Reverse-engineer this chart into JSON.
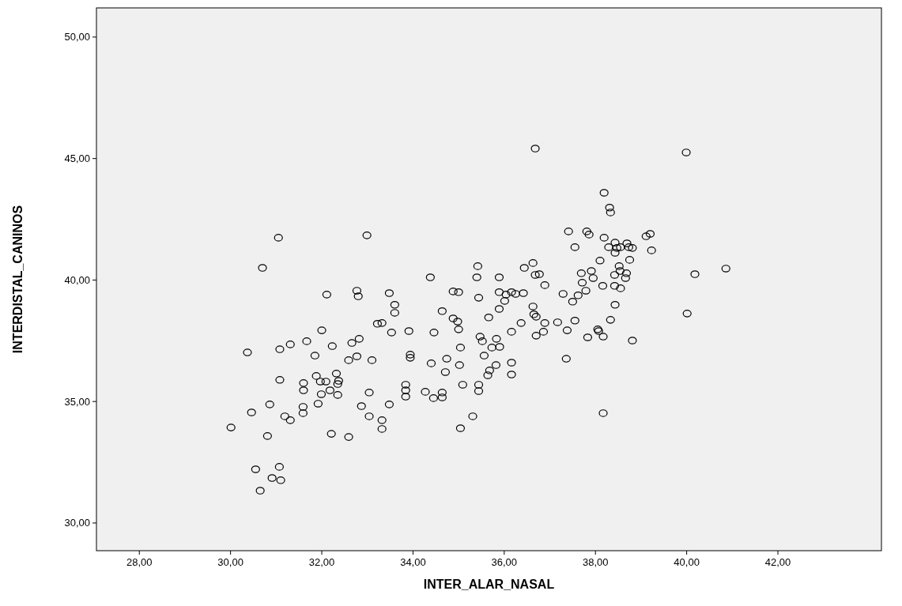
{
  "chart_data": {
    "type": "scatter",
    "xlabel": "INTER_ALAR_NASAL",
    "ylabel": "INTERDISTAL_CANINOS",
    "marker": "circle",
    "grid": false,
    "xlim": [
      27.06,
      44.27
    ],
    "ylim": [
      28.86,
      51.2
    ],
    "xticks": [
      {
        "value": 28,
        "label": "28,00"
      },
      {
        "value": 30,
        "label": "30,00"
      },
      {
        "value": 32,
        "label": "32,00"
      },
      {
        "value": 34,
        "label": "34,00"
      },
      {
        "value": 36,
        "label": "36,00"
      },
      {
        "value": 38,
        "label": "38,00"
      },
      {
        "value": 40,
        "label": "40,00"
      },
      {
        "value": 42,
        "label": "42,00"
      }
    ],
    "yticks": [
      {
        "value": 30,
        "label": "30,00"
      },
      {
        "value": 35,
        "label": "35,00"
      },
      {
        "value": 40,
        "label": "40,00"
      },
      {
        "value": 45,
        "label": "45,00"
      },
      {
        "value": 50,
        "label": "50,00"
      }
    ],
    "series": [
      {
        "color": "#000000",
        "x": [
          31.08,
          31.6,
          31.6,
          31.88,
          31.97,
          32.09,
          32.32,
          32.37,
          32.35,
          32.18,
          31.99,
          32.35,
          33.04,
          33.84,
          33.84,
          33.84,
          34.27,
          34.45,
          34.64,
          34.64,
          34.71,
          35.09,
          30.86,
          30.46,
          30.01,
          30.81,
          31.19,
          31.31,
          31.59,
          31.59,
          31.92,
          32.21,
          32.59,
          32.87,
          33.04,
          33.32,
          33.32,
          33.48,
          35.04,
          30.55,
          31.07,
          30.91,
          31.1,
          30.65,
          31.05,
          32.99,
          30.7,
          34.38,
          32.11,
          32.77,
          32.8,
          33.48,
          34.88,
          35.0,
          33.6,
          33.6,
          34.64,
          34.88,
          34.98,
          35.0,
          33.22,
          33.32,
          33.53,
          33.91,
          34.46,
          32.0,
          30.37,
          31.08,
          31.31,
          31.67,
          32.23,
          32.66,
          32.82,
          31.85,
          32.59,
          32.77,
          33.1,
          33.94,
          33.94,
          34.4,
          34.74,
          35.04,
          35.02,
          36.68,
          39.99,
          38.19,
          38.31,
          38.33,
          37.41,
          37.81,
          37.86,
          39.11,
          39.2,
          38.19,
          37.55,
          38.29,
          38.43,
          38.47,
          38.55,
          38.69,
          38.73,
          38.81,
          38.43,
          39.23,
          38.1,
          38.75,
          38.52,
          38.54,
          38.68,
          38.42,
          38.66,
          37.69,
          37.91,
          37.95,
          37.71,
          37.79,
          38.16,
          38.42,
          38.55,
          38.43,
          38.33,
          38.81,
          38.17,
          38.05,
          38.07,
          37.83,
          37.55,
          37.38,
          37.36,
          37.62,
          37.5,
          37.29,
          40.18,
          40.01,
          36.89,
          36.63,
          36.44,
          36.68,
          36.77,
          36.63,
          36.65,
          36.7,
          36.89,
          37.17,
          36.86,
          36.7,
          36.37,
          36.16,
          35.42,
          35.4,
          35.89,
          35.44,
          35.89,
          36.04,
          36.16,
          36.25,
          36.42,
          36.01,
          35.89,
          35.66,
          35.47,
          35.52,
          35.83,
          35.73,
          35.9,
          35.56,
          35.82,
          36.16,
          36.16,
          35.68,
          35.64,
          35.44,
          35.44,
          35.31,
          38.17,
          40.86
        ],
        "values": [
          35.89,
          35.76,
          35.46,
          36.05,
          35.82,
          35.82,
          36.15,
          35.85,
          35.72,
          35.46,
          35.3,
          35.27,
          35.37,
          35.69,
          35.46,
          35.2,
          35.4,
          35.14,
          35.37,
          35.17,
          36.21,
          35.69,
          34.88,
          34.55,
          33.93,
          33.58,
          34.39,
          34.23,
          34.78,
          34.52,
          34.91,
          33.67,
          33.54,
          34.81,
          34.39,
          34.23,
          33.87,
          34.88,
          33.9,
          32.21,
          32.31,
          31.85,
          31.76,
          31.33,
          41.74,
          41.84,
          40.5,
          40.11,
          39.4,
          39.56,
          39.33,
          39.46,
          39.53,
          39.5,
          38.98,
          38.65,
          38.72,
          38.42,
          38.29,
          37.97,
          38.2,
          38.23,
          37.84,
          37.9,
          37.84,
          37.93,
          37.02,
          37.15,
          37.35,
          37.48,
          37.28,
          37.41,
          37.58,
          36.89,
          36.7,
          36.86,
          36.7,
          36.93,
          36.8,
          36.57,
          36.76,
          37.22,
          36.5,
          45.41,
          45.25,
          43.59,
          42.98,
          42.78,
          42.0,
          42.0,
          41.87,
          41.8,
          41.9,
          41.74,
          41.35,
          41.35,
          41.54,
          41.32,
          41.35,
          41.51,
          41.35,
          41.32,
          41.12,
          41.22,
          40.8,
          40.83,
          40.57,
          40.37,
          40.28,
          40.21,
          40.08,
          40.28,
          40.37,
          40.08,
          39.89,
          39.56,
          39.76,
          39.76,
          39.66,
          38.98,
          38.36,
          37.51,
          37.67,
          37.97,
          37.9,
          37.64,
          38.33,
          37.93,
          36.76,
          39.37,
          39.11,
          39.43,
          40.24,
          38.62,
          39.79,
          40.7,
          40.5,
          40.21,
          40.24,
          38.91,
          38.59,
          38.49,
          38.23,
          38.26,
          37.87,
          37.71,
          38.23,
          37.87,
          40.57,
          40.11,
          40.11,
          39.27,
          39.5,
          39.4,
          39.5,
          39.43,
          39.46,
          39.14,
          38.81,
          38.46,
          37.67,
          37.48,
          37.58,
          37.22,
          37.25,
          36.89,
          36.5,
          36.6,
          36.11,
          36.28,
          36.08,
          35.69,
          35.43,
          34.39,
          34.52,
          40.47
        ]
      }
    ]
  }
}
